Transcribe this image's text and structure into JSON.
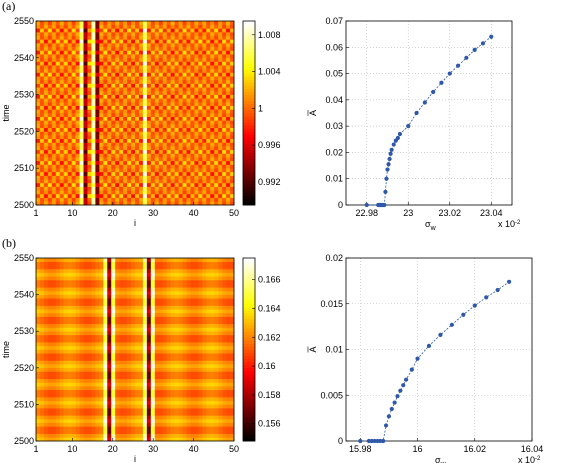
{
  "panels": [
    {
      "label": "(a)",
      "heatmap": {
        "type": "heatmap",
        "xlabel": "i",
        "ylabel": "time",
        "xlim": [
          1,
          50
        ],
        "ylim": [
          2500,
          2550
        ],
        "xticks": [
          "1",
          "10",
          "20",
          "30",
          "40",
          "50"
        ],
        "yticks": [
          "2500",
          "2510",
          "2520",
          "2530",
          "2540",
          "2550"
        ],
        "colorbar_ticks": [
          "0.992",
          "0.996",
          "1",
          "1.004",
          "1.008"
        ],
        "colorbar_values": [
          0.992,
          0.996,
          1.0,
          1.004,
          1.008
        ],
        "clim": [
          0.9895,
          1.0095
        ],
        "colormap": "hot",
        "dark_columns": [
          13,
          16
        ],
        "bright_columns": [
          12,
          15,
          28
        ],
        "period": 6
      },
      "curve": {
        "type": "line",
        "xlabel": "σ",
        "xlabel_sub": "w",
        "ylabel": "A",
        "x_multiplier": "x 10",
        "x_exponent": "-2",
        "xlim": [
          22.97,
          23.05
        ],
        "ylim": [
          0,
          0.07
        ],
        "xticks": [
          "22.98",
          "23",
          "23.02",
          "23.04"
        ],
        "yticks": [
          "0",
          "0.01",
          "0.02",
          "0.03",
          "0.04",
          "0.05",
          "0.06",
          "0.07"
        ],
        "x": [
          22.98,
          22.9855,
          22.986,
          22.9865,
          22.987,
          22.9875,
          22.988,
          22.9885,
          22.989,
          22.9895,
          22.99,
          22.9905,
          22.991,
          22.9915,
          22.992,
          22.993,
          22.994,
          22.995,
          22.996,
          23.0,
          23.004,
          23.008,
          23.012,
          23.016,
          23.02,
          23.024,
          23.028,
          23.032,
          23.036,
          23.04
        ],
        "y": [
          0,
          0,
          0,
          0,
          0,
          0,
          0,
          0,
          0.005,
          0.01,
          0.0135,
          0.0155,
          0.0175,
          0.0195,
          0.021,
          0.023,
          0.0245,
          0.0255,
          0.027,
          0.03,
          0.035,
          0.039,
          0.043,
          0.0465,
          0.05,
          0.053,
          0.056,
          0.059,
          0.0615,
          0.064
        ],
        "color": "#2f58a8"
      }
    },
    {
      "label": "(b)",
      "heatmap": {
        "type": "heatmap",
        "xlabel": "i",
        "ylabel": "time",
        "xlim": [
          1,
          50
        ],
        "ylim": [
          2500,
          2550
        ],
        "xticks": [
          "1",
          "10",
          "20",
          "30",
          "40",
          "50"
        ],
        "yticks": [
          "2500",
          "2510",
          "2520",
          "2530",
          "2540",
          "2550"
        ],
        "colorbar_ticks": [
          "0.156",
          "0.158",
          "0.16",
          "0.162",
          "0.164",
          "0.166"
        ],
        "colorbar_values": [
          0.156,
          0.158,
          0.16,
          0.162,
          0.164,
          0.166
        ],
        "clim": [
          0.1548,
          0.1675
        ],
        "colormap": "hot",
        "dark_columns": [
          19,
          29
        ],
        "bright_columns": [
          18,
          20,
          28,
          30
        ],
        "period": 5
      },
      "curve": {
        "type": "line",
        "xlabel": "σ",
        "xlabel_sub": "w",
        "ylabel": "A",
        "x_multiplier": "x 10",
        "x_exponent": "-2",
        "xlim": [
          15.975,
          16.04
        ],
        "ylim": [
          0,
          0.02
        ],
        "xticks": [
          "15.98",
          "16",
          "16.02",
          "16.04"
        ],
        "yticks": [
          "0",
          "0.005",
          "0.01",
          "0.015",
          "0.02"
        ],
        "x": [
          15.98,
          15.983,
          15.984,
          15.985,
          15.986,
          15.987,
          15.988,
          15.989,
          15.99,
          15.991,
          15.992,
          15.993,
          15.994,
          15.995,
          15.996,
          15.998,
          16.0,
          16.004,
          16.008,
          16.012,
          16.016,
          16.02,
          16.024,
          16.028,
          16.032
        ],
        "y": [
          0,
          0,
          0,
          0,
          0,
          0,
          0,
          0.0017,
          0.0027,
          0.0035,
          0.0042,
          0.0049,
          0.0055,
          0.0061,
          0.0067,
          0.0078,
          0.009,
          0.0104,
          0.0116,
          0.0127,
          0.0138,
          0.0148,
          0.0157,
          0.0165,
          0.0174
        ],
        "color": "#2f58a8"
      }
    }
  ]
}
